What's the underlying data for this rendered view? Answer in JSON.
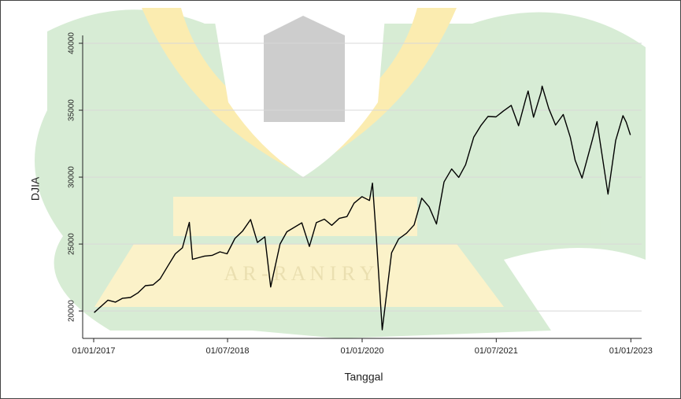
{
  "chart_data": {
    "type": "line",
    "watermark": "A R - R A N I R Y",
    "ylabel": "DJIA",
    "xlabel": "Tanggal",
    "x": [
      "2017-01-03",
      "2017-02-28",
      "2017-03-31",
      "2017-04-28",
      "2017-05-31",
      "2017-06-30",
      "2017-07-31",
      "2017-08-31",
      "2017-09-29",
      "2017-10-31",
      "2017-11-30",
      "2017-12-29",
      "2018-01-26",
      "2018-02-08",
      "2018-03-29",
      "2018-04-30",
      "2018-05-31",
      "2018-06-29",
      "2018-07-31",
      "2018-08-31",
      "2018-10-03",
      "2018-10-31",
      "2018-11-30",
      "2018-12-24",
      "2019-01-31",
      "2019-02-28",
      "2019-04-30",
      "2019-05-31",
      "2019-06-28",
      "2019-07-31",
      "2019-08-30",
      "2019-09-30",
      "2019-10-31",
      "2019-11-29",
      "2019-12-31",
      "2020-01-31",
      "2020-02-12",
      "2020-02-28",
      "2020-03-23",
      "2020-04-30",
      "2020-05-29",
      "2020-06-30",
      "2020-07-31",
      "2020-08-31",
      "2020-09-30",
      "2020-10-30",
      "2020-11-30",
      "2020-12-31",
      "2021-01-29",
      "2021-02-26",
      "2021-03-31",
      "2021-04-30",
      "2021-05-28",
      "2021-06-30",
      "2021-07-30",
      "2021-08-31",
      "2021-09-30",
      "2021-10-29",
      "2021-11-08",
      "2021-11-30",
      "2021-12-31",
      "2022-01-04",
      "2022-01-31",
      "2022-02-28",
      "2022-03-31",
      "2022-04-29",
      "2022-05-19",
      "2022-06-16",
      "2022-07-29",
      "2022-08-16",
      "2022-09-30",
      "2022-10-31",
      "2022-11-30",
      "2022-12-13",
      "2022-12-30"
    ],
    "series": [
      {
        "name": "DJIA",
        "color": "#000000",
        "values": [
          19880,
          20810,
          20660,
          20940,
          21010,
          21350,
          21890,
          21950,
          22400,
          23380,
          24270,
          24720,
          26620,
          23860,
          24100,
          24160,
          24420,
          24270,
          25420,
          25960,
          26830,
          25120,
          25540,
          21790,
          25000,
          25920,
          26590,
          24820,
          26600,
          26860,
          26400,
          26920,
          27050,
          28050,
          28540,
          28260,
          29550,
          25410,
          18590,
          24350,
          25380,
          25810,
          26430,
          28430,
          27780,
          26500,
          29640,
          30610,
          29980,
          30930,
          32980,
          33870,
          34530,
          34500,
          34940,
          35360,
          33840,
          35820,
          36430,
          34480,
          36340,
          36800,
          35130,
          33890,
          34680,
          32980,
          31250,
          29930,
          32850,
          34150,
          28730,
          32730,
          34590,
          34110,
          33150
        ]
      }
    ],
    "xlim": [
      "2016-11-17",
      "2023-02-14"
    ],
    "xticks": [
      {
        "value": "2017-01-01",
        "label": "01/01/2017"
      },
      {
        "value": "2018-07-01",
        "label": "01/07/2018"
      },
      {
        "value": "2020-01-01",
        "label": "01/01/2020"
      },
      {
        "value": "2021-07-01",
        "label": "01/07/2021"
      },
      {
        "value": "2023-01-01",
        "label": "01/01/2023"
      }
    ],
    "ylim": [
      17950,
      40000
    ],
    "yticks": [
      20000,
      25000,
      30000,
      35000,
      40000
    ],
    "grid": true
  }
}
